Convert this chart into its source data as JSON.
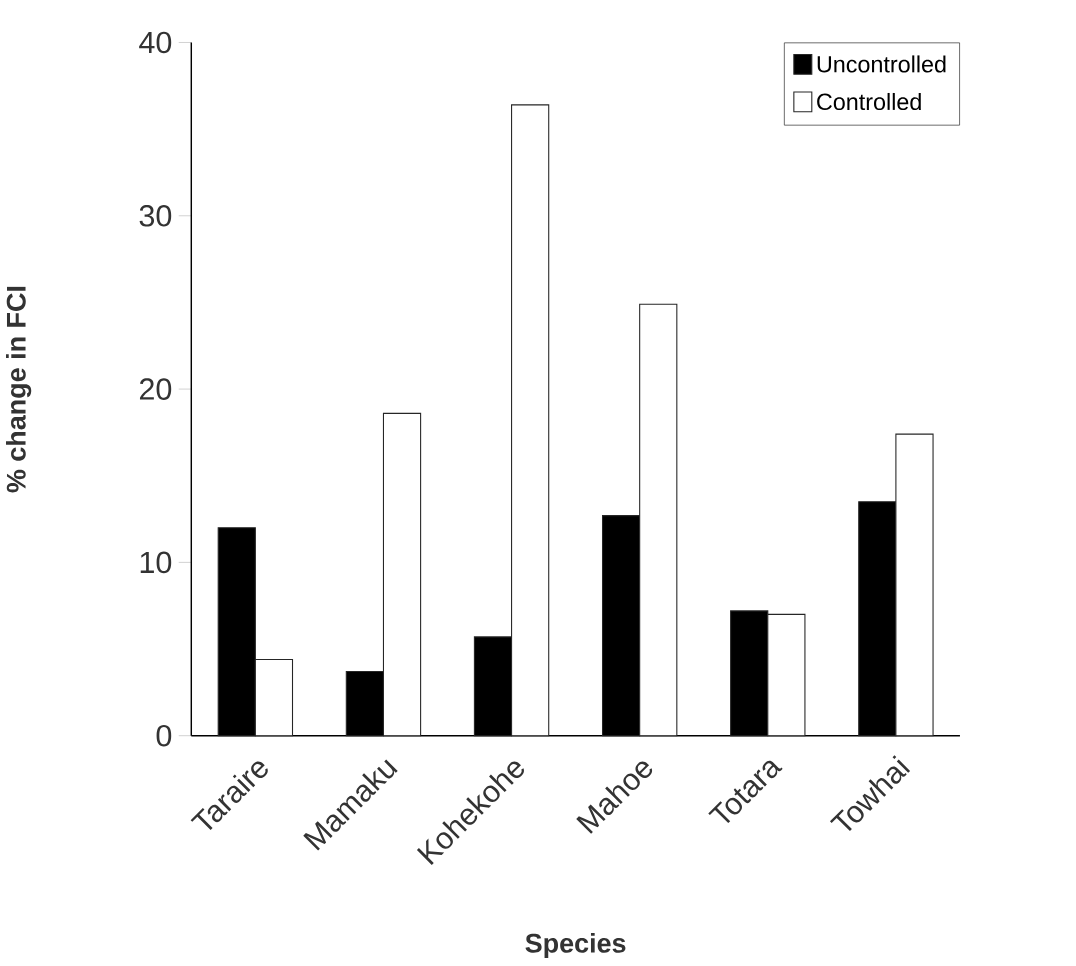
{
  "chart_data": {
    "type": "bar",
    "xlabel": "Species",
    "ylabel": "% change in FCI",
    "categories": [
      "Taraire",
      "Mamaku",
      "Kohekohe",
      "Mahoe",
      "Totara",
      "Towhai"
    ],
    "series": [
      {
        "name": "Uncontrolled",
        "color": "#000000",
        "values": [
          12.0,
          3.7,
          5.7,
          12.7,
          7.2,
          13.5
        ]
      },
      {
        "name": "Controlled",
        "color": "#ffffff",
        "values": [
          4.4,
          18.6,
          36.4,
          24.9,
          7.0,
          17.4
        ]
      }
    ],
    "ylim": [
      0,
      40
    ],
    "yticks": [
      0,
      10,
      20,
      30,
      40
    ],
    "grid": false,
    "legend": "top right"
  }
}
